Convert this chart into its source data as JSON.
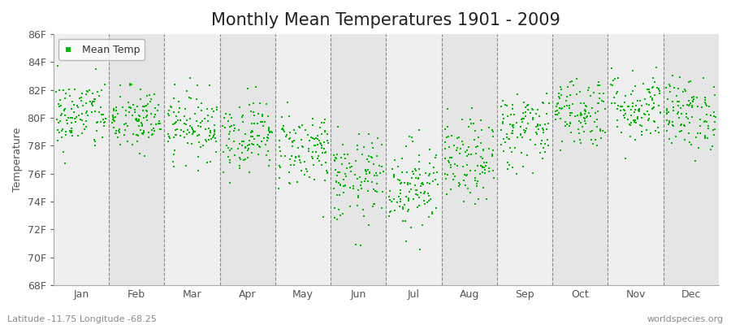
{
  "title": "Monthly Mean Temperatures 1901 - 2009",
  "ylabel": "Temperature",
  "xlabel_labels": [
    "Jan",
    "Feb",
    "Mar",
    "Apr",
    "May",
    "Jun",
    "Jul",
    "Aug",
    "Sep",
    "Oct",
    "Nov",
    "Dec"
  ],
  "ytick_labels": [
    "68F",
    "70F",
    "72F",
    "74F",
    "76F",
    "78F",
    "80F",
    "82F",
    "84F",
    "86F"
  ],
  "ytick_values": [
    68,
    70,
    72,
    74,
    76,
    78,
    80,
    82,
    84,
    86
  ],
  "ylim": [
    68,
    86
  ],
  "legend_label": "Mean Temp",
  "marker_color": "#00bb00",
  "fig_bg_color": "#ffffff",
  "plot_bg_color": "#f5f5f5",
  "band_color_light": "#efefef",
  "band_color_dark": "#e5e5e5",
  "footer_left": "Latitude -11.75 Longitude -68.25",
  "footer_right": "worldspecies.org",
  "title_fontsize": 15,
  "axis_fontsize": 9,
  "footer_fontsize": 8,
  "n_years": 109,
  "month_mean_temps": [
    80.2,
    79.8,
    79.5,
    78.8,
    77.8,
    75.5,
    75.2,
    76.8,
    79.2,
    80.5,
    80.8,
    80.3
  ],
  "month_std_temps": [
    1.3,
    1.2,
    1.2,
    1.3,
    1.4,
    1.6,
    1.6,
    1.5,
    1.4,
    1.3,
    1.3,
    1.3
  ],
  "random_seed": 42
}
